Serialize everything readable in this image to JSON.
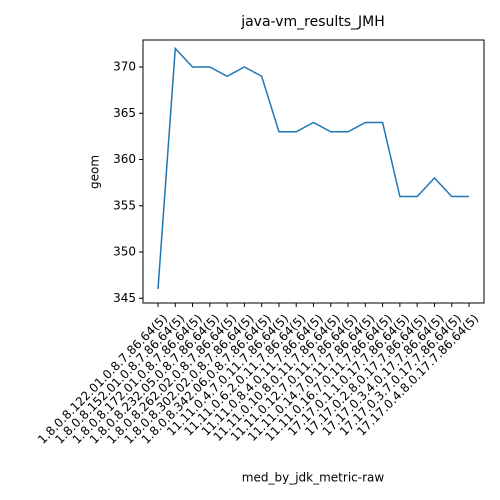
{
  "chart_data": {
    "type": "line",
    "title": "java-vm_results_JMH",
    "xlabel": "med_by_jdk_metric-raw",
    "ylabel": "geom",
    "categories": [
      "1.8.0.8.122.01.0.8.7.86.64(5)",
      "1.8.0.8.152.01.0.8.7.86.64(5)",
      "1.8.0.8.172.01.0.8.7.86.64(5)",
      "1.8.0.8.232.05.0.8.7.86.64(5)",
      "1.8.0.8.262.02.0.8.7.86.64(5)",
      "1.8.0.8.302.02.0.8.7.86.64(5)",
      "1.8.0.8.342.06.0.8.7.86.64(5)",
      "11.11.0.4.7.0.11.7.86.64(5)",
      "11.11.0.6.2.0.11.7.86.64(5)",
      "11.11.0.8.4.0.11.7.86.64(5)",
      "11.11.0.10.8.0.11.7.86.64(5)",
      "11.11.0.12.7.0.11.7.86.64(5)",
      "11.11.0.14.7.0.11.7.86.64(5)",
      "11.11.0.16.7.0.11.7.86.64(5)",
      "17.17.0.1.1.0.17.7.86.64(5)",
      "17.17.0.2.8.0.17.7.86.64(5)",
      "17.17.0.3.4.0.17.7.86.64(5)",
      "17.17.0.3.7.0.17.7.86.64(5)",
      "17.17.0.4.8.0.17.7.86.64(5)"
    ],
    "values": [
      346,
      372,
      370,
      370,
      369,
      370,
      369,
      363,
      363,
      364,
      363,
      363,
      364,
      364,
      356,
      356,
      358,
      356,
      356
    ],
    "color": "#1f77b4",
    "ylim": [
      344.49,
      372.92
    ],
    "yticks": [
      345,
      350,
      355,
      360,
      365,
      370
    ]
  }
}
